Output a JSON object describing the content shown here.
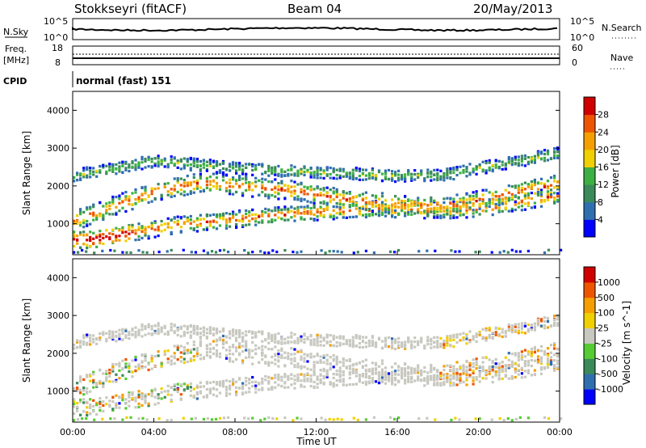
{
  "header": {
    "station": "Stokkseyri (fitACF)",
    "beam": "Beam 04",
    "date": "20/May/2013"
  },
  "side_labels": {
    "nsky": "N.Sky",
    "freq": "Freq.",
    "freq_unit": "[MHz]",
    "cpid": "CPID",
    "nsearch": "N.Search",
    "nave": "Nave"
  },
  "cpid_text": "normal (fast) 151",
  "x_axis": {
    "label": "Time UT",
    "ticks": [
      "00:00",
      "04:00",
      "08:00",
      "12:00",
      "16:00",
      "20:00",
      "00:00"
    ]
  },
  "noise_panel": {
    "left_ticks": [
      "10^5",
      "10^0"
    ],
    "right_ticks": [
      "10^5",
      "10^0"
    ]
  },
  "freq_panel": {
    "left_ticks": [
      "18",
      "8"
    ],
    "right_ticks": [
      "60",
      "0"
    ]
  },
  "chart_data": [
    {
      "type": "heatmap",
      "name": "power",
      "ylabel": "Slant Range [km]",
      "xlabel": "Time UT",
      "yticks": [
        "1000",
        "2000",
        "3000",
        "4000"
      ],
      "ylim": [
        180,
        4500
      ],
      "xlim": [
        0,
        24
      ],
      "colorbar": {
        "label": "Power [dB]",
        "ticks": [
          "4",
          "8",
          "12",
          "16",
          "20",
          "24",
          "28"
        ],
        "colors": [
          "#0000ff",
          "#2f6fb0",
          "#3a8a5a",
          "#3cb043",
          "#f0d000",
          "#f5a000",
          "#ee5500",
          "#d00000"
        ]
      },
      "echo_bands": [
        {
          "x": [
            0,
            1,
            2,
            3,
            4,
            5,
            6,
            7,
            8,
            9,
            10,
            11,
            12,
            13,
            14,
            15,
            16,
            17,
            18,
            19,
            20,
            21,
            22,
            23,
            24
          ],
          "y": [
            600,
            620,
            700,
            800,
            900,
            1000,
            1050,
            1100,
            1150,
            1200,
            1250,
            1300,
            1350,
            1380,
            1400,
            1420,
            1420,
            1400,
            1400,
            1400,
            1450,
            1500,
            1600,
            1700,
            1800
          ]
        },
        {
          "x": [
            0,
            1,
            2,
            3,
            4,
            5,
            6,
            7,
            8,
            9,
            10,
            11,
            12,
            13,
            14,
            15,
            16,
            17,
            18,
            19,
            20,
            21,
            22,
            23,
            24
          ],
          "y": [
            1100,
            1300,
            1500,
            1700,
            1900,
            2000,
            2100,
            2100,
            2050,
            2000,
            1950,
            1900,
            1800,
            1700,
            1650,
            1600,
            1550,
            1500,
            1500,
            1550,
            1650,
            1750,
            1900,
            2000,
            2100
          ]
        },
        {
          "x": [
            0,
            2,
            4,
            6,
            8,
            10,
            12,
            14,
            16,
            18,
            20,
            22,
            24
          ],
          "y": [
            2300,
            2500,
            2700,
            2600,
            2500,
            2450,
            2400,
            2350,
            2300,
            2300,
            2500,
            2700,
            2900
          ]
        }
      ]
    },
    {
      "type": "heatmap",
      "name": "velocity",
      "ylabel": "Slant Range [km]",
      "xlabel": "Time UT",
      "yticks": [
        "1000",
        "2000",
        "3000",
        "4000"
      ],
      "ylim": [
        180,
        4500
      ],
      "xlim": [
        0,
        24
      ],
      "colorbar": {
        "label": "Velocity [m s^-1]",
        "ticks": [
          "1000",
          "500",
          "100",
          "25",
          "-25",
          "-100",
          "-500",
          "-1000"
        ],
        "colors": [
          "#0000ff",
          "#2f6fb0",
          "#3a8a5a",
          "#55cc33",
          "#c8c8c0",
          "#f0d000",
          "#f5a000",
          "#ee5500",
          "#d00000"
        ]
      }
    }
  ]
}
